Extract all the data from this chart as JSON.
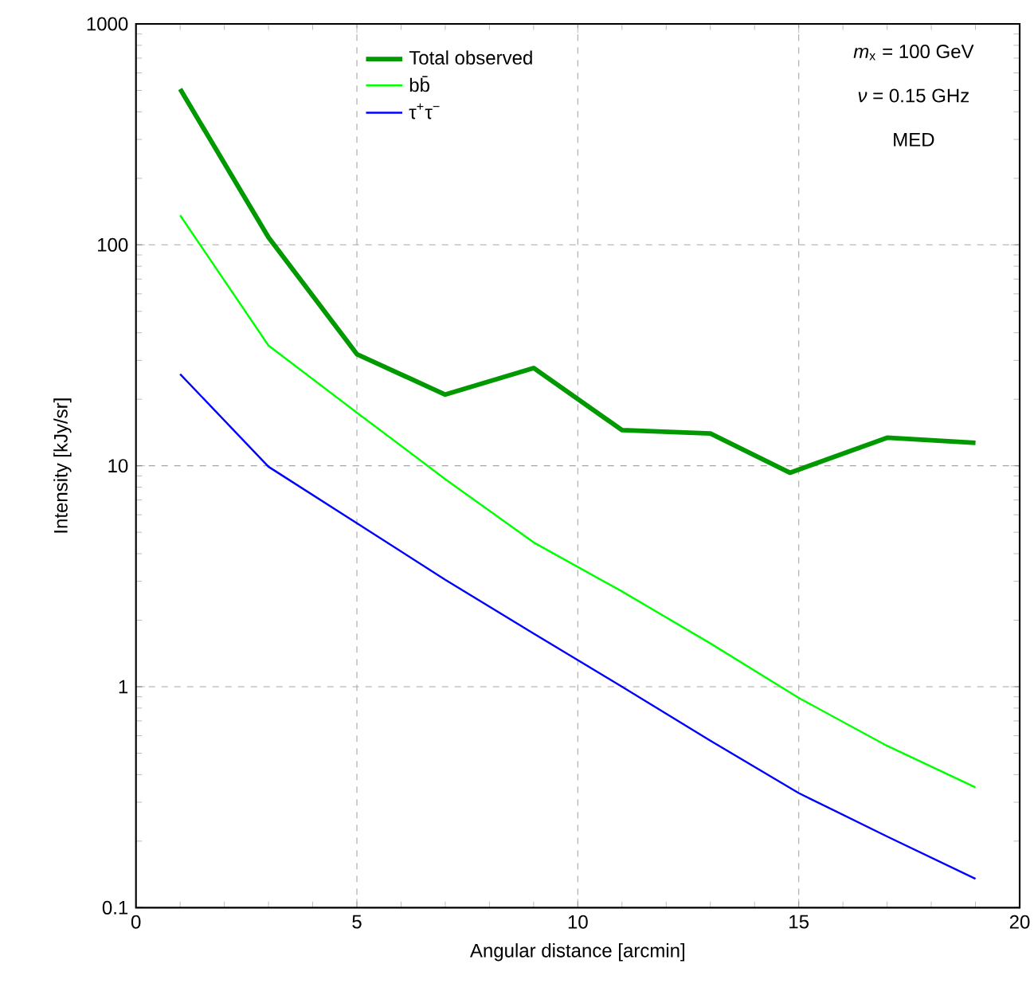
{
  "chart_data": {
    "type": "line",
    "xlabel": "Angular distance [arcmin]",
    "ylabel": "Intensity [kJy/sr]",
    "log": "y",
    "grid": true,
    "legend": "top",
    "xlim": [
      0,
      20
    ],
    "xticks": [
      0,
      5,
      10,
      15,
      20
    ],
    "ylim": [
      0.1,
      1000
    ],
    "yticks": [
      0.1,
      1,
      10,
      100,
      1000
    ],
    "series": [
      {
        "name": "Total observed",
        "color": "#009900",
        "x": [
          1,
          3,
          5,
          7,
          9,
          11,
          13,
          14.8,
          17,
          19
        ],
        "values": [
          507,
          108,
          32,
          21,
          27.7,
          14.5,
          14,
          9.3,
          13.4,
          12.7
        ]
      },
      {
        "name": "bb̄",
        "color": "#00ff00",
        "x": [
          1,
          3,
          5,
          7,
          9,
          11,
          13,
          15,
          17,
          19
        ],
        "values": [
          136,
          35,
          17.4,
          8.7,
          4.5,
          2.7,
          1.57,
          0.89,
          0.54,
          0.35
        ]
      },
      {
        "name": "τ$^{+}$τ$^{−}$",
        "color": "#0000ff",
        "x": [
          1,
          3,
          5,
          7,
          9,
          11,
          13,
          15,
          17,
          19
        ],
        "values": [
          26,
          9.9,
          5.5,
          3.05,
          1.74,
          1.0,
          0.57,
          0.33,
          0.21,
          0.135
        ]
      }
    ],
    "annotations": [
      "*m*$_{x}$ = 100 GeV",
      "*ν* = 0.15 GHz",
      "MED"
    ]
  }
}
